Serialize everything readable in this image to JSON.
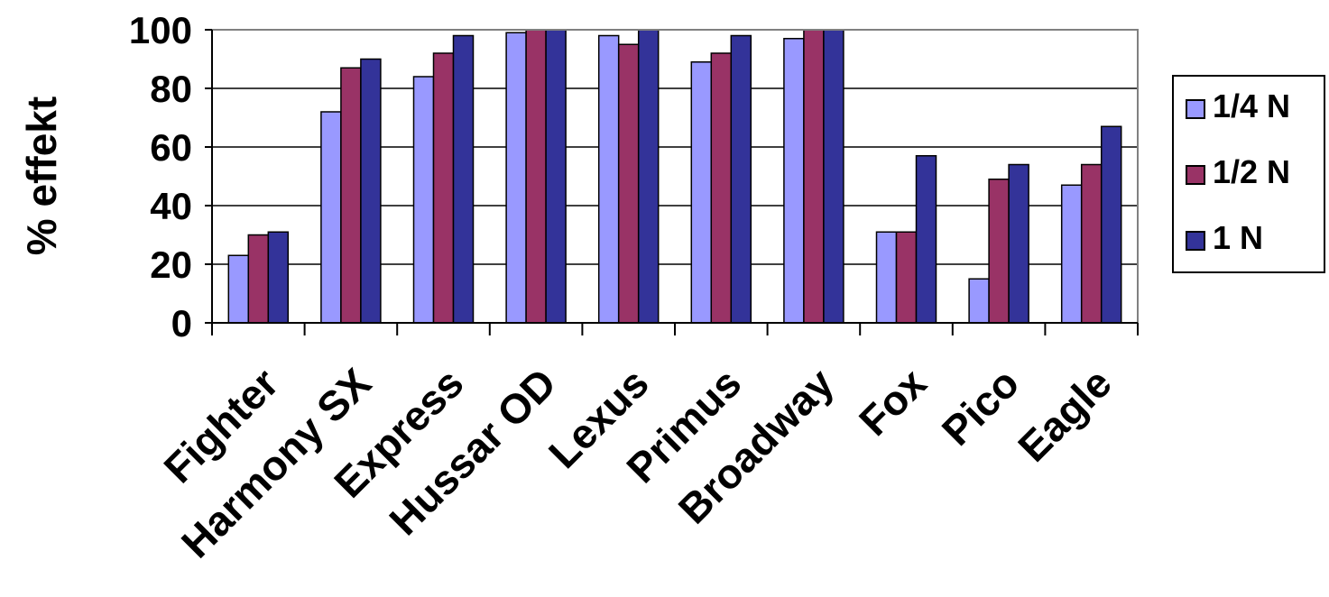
{
  "chart_data": {
    "type": "bar",
    "title": "",
    "xlabel": "",
    "ylabel": "% effekt",
    "ylim": [
      0,
      100
    ],
    "yticks": [
      0,
      20,
      40,
      60,
      80,
      100
    ],
    "grid": true,
    "legend_position": "right",
    "categories": [
      "Fighter",
      "Harmony SX",
      "Express",
      "Hussar OD",
      "Lexus",
      "Primus",
      "Broadway",
      "Fox",
      "Pico",
      "Eagle"
    ],
    "series": [
      {
        "name": "1/4 N",
        "color": "#9999ff",
        "values": [
          23,
          72,
          84,
          99,
          98,
          89,
          97,
          31,
          15,
          47
        ]
      },
      {
        "name": "1/2 N",
        "color": "#993366",
        "values": [
          30,
          87,
          92,
          100,
          95,
          92,
          100,
          31,
          49,
          54
        ]
      },
      {
        "name": "1 N",
        "color": "#333399",
        "values": [
          31,
          90,
          98,
          100,
          100,
          98,
          100,
          57,
          54,
          67
        ]
      }
    ]
  }
}
